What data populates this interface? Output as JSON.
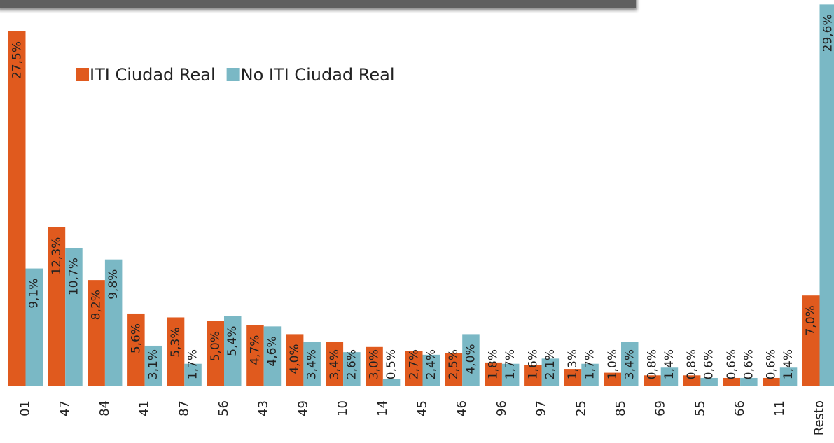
{
  "chart_data": {
    "type": "bar",
    "categories": [
      "01",
      "47",
      "84",
      "41",
      "87",
      "56",
      "43",
      "49",
      "10",
      "14",
      "45",
      "46",
      "96",
      "97",
      "25",
      "85",
      "69",
      "55",
      "66",
      "11",
      "Resto"
    ],
    "series": [
      {
        "name": "ITI Ciudad Real",
        "color": "#e05a1e",
        "values": [
          27.5,
          12.3,
          8.2,
          5.6,
          5.3,
          5.0,
          4.7,
          4.0,
          3.4,
          3.0,
          2.7,
          2.5,
          1.8,
          1.6,
          1.3,
          1.0,
          0.8,
          0.8,
          0.6,
          0.6,
          7.0
        ],
        "value_labels": [
          "27,5%",
          "12,3%",
          "8,2%",
          "5,6%",
          "5,3%",
          "5,0%",
          "4,7%",
          "4,0%",
          "3,4%",
          "3,0%",
          "2,7%",
          "2,5%",
          "1,8%",
          "1,6%",
          "1,3%",
          "1,0%",
          "0,8%",
          "0,8%",
          "0,6%",
          "0,6%",
          "7,0%"
        ]
      },
      {
        "name": "No ITI Ciudad Real",
        "color": "#7ab8c5",
        "values": [
          9.1,
          10.7,
          9.8,
          3.1,
          1.7,
          5.4,
          4.6,
          3.4,
          2.6,
          0.5,
          2.4,
          4.0,
          1.7,
          2.1,
          1.7,
          3.4,
          1.4,
          0.6,
          0.6,
          1.4,
          29.6
        ],
        "value_labels": [
          "9,1%",
          "10,7%",
          "9,8%",
          "3,1%",
          "1,7%",
          "5,4%",
          "4,6%",
          "3,4%",
          "2,6%",
          "0,5%",
          "2,4%",
          "4,0%",
          "1,7%",
          "2,1%",
          "1,7%",
          "3,4%",
          "1,4%",
          "0,6%",
          "0,6%",
          "1,4%",
          "29,6%"
        ]
      }
    ],
    "legend": "top-left"
  }
}
